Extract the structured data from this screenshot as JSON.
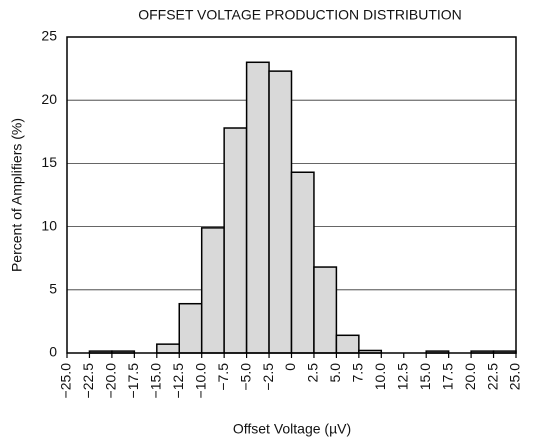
{
  "chart_data": {
    "type": "histogram",
    "title": "OFFSET VOLTAGE PRODUCTION DISTRIBUTION",
    "xlabel": "Offset Voltage (µV)",
    "ylabel": "Percent of Amplifiers (%)",
    "bins": [
      -25,
      -22.5,
      -20,
      -17.5,
      -15,
      -12.5,
      -10,
      -7.5,
      -5,
      -2.5,
      0,
      2.5,
      5,
      7.5,
      10,
      12.5,
      15,
      17.5,
      20,
      22.5,
      25
    ],
    "values": [
      0,
      0.15,
      0.15,
      0,
      0.7,
      3.9,
      9.9,
      17.8,
      23.0,
      22.3,
      14.3,
      6.8,
      1.4,
      0.2,
      0,
      0,
      0.15,
      0,
      0.15,
      0.15
    ],
    "color": "#d9d9d9",
    "xlim": [
      -25,
      25
    ],
    "ylim": [
      0,
      25
    ],
    "yticks": [
      0,
      5,
      10,
      15,
      20,
      25
    ],
    "xticks": [
      {
        "value": -25,
        "label": "−25.0"
      },
      {
        "value": -22.5,
        "label": "−22.5"
      },
      {
        "value": -20,
        "label": "−20.0"
      },
      {
        "value": -17.5,
        "label": "−17.5"
      },
      {
        "value": -15,
        "label": "−15.0"
      },
      {
        "value": -12.5,
        "label": "−12.5"
      },
      {
        "value": -10,
        "label": "−10.0"
      },
      {
        "value": -7.5,
        "label": "−7.5"
      },
      {
        "value": -5,
        "label": "−5.0"
      },
      {
        "value": -2.5,
        "label": "−2.5"
      },
      0,
      {
        "value": 2.5,
        "label": "2.5"
      },
      {
        "value": 5,
        "label": "5.0"
      },
      {
        "value": 7.5,
        "label": "7.5"
      },
      {
        "value": 10,
        "label": "10.0"
      },
      {
        "value": 12.5,
        "label": "12.5"
      },
      {
        "value": 15,
        "label": "15.0"
      },
      {
        "value": 17.5,
        "label": "17.5"
      },
      {
        "value": 20,
        "label": "20.0"
      },
      {
        "value": 22.5,
        "label": "22.5"
      },
      {
        "value": 25,
        "label": "25.0"
      }
    ],
    "grid": true
  }
}
